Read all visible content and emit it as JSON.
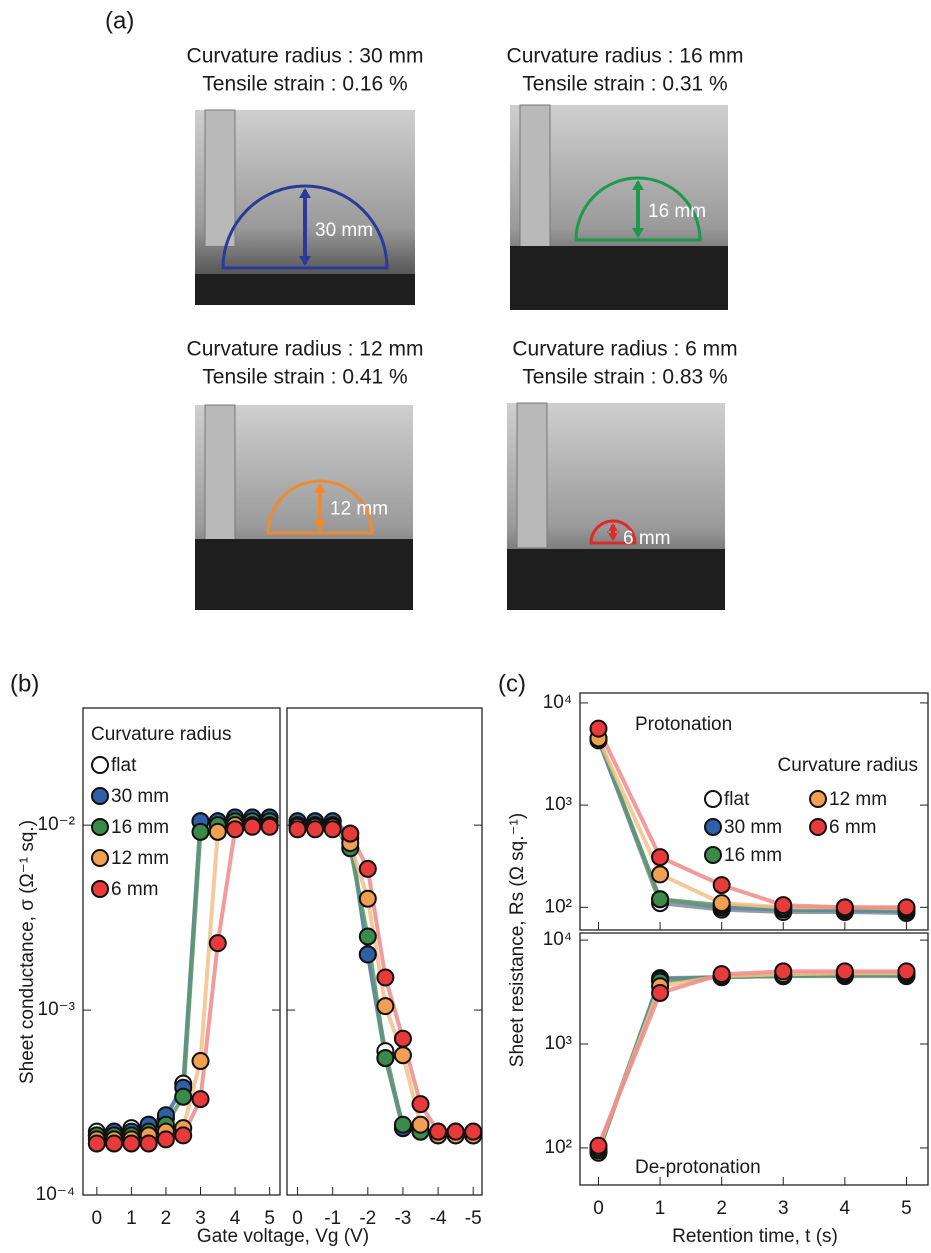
{
  "panel_a": {
    "label": "(a)",
    "photos": [
      {
        "caption1": "Curvature radius : 30 mm",
        "caption2": "Tensile strain : 0.16 %",
        "dimension": "30 mm",
        "color": "#2b3a9a"
      },
      {
        "caption1": "Curvature radius : 16 mm",
        "caption2": "Tensile strain : 0.31 %",
        "dimension": "16 mm",
        "color": "#1a9a4a"
      },
      {
        "caption1": "Curvature radius : 12 mm",
        "caption2": "Tensile strain : 0.41 %",
        "dimension": "12 mm",
        "color": "#f08a30"
      },
      {
        "caption1": "Curvature radius : 6 mm",
        "caption2": "Tensile strain : 0.83 %",
        "dimension": "6 mm",
        "color": "#e02a2a"
      }
    ]
  },
  "chart_data": [
    {
      "type": "line",
      "panel_label": "(b)",
      "ylabel": "Sheet conductance, σ (Ω⁻¹ sq.)",
      "xlabel": "Gate voltage, Vg (V)",
      "ylog": true,
      "xlim": [
        -0.4,
        5.3
      ],
      "ylim": [
        0.0001,
        0.043
      ],
      "xticks": [
        0,
        1,
        2,
        3,
        4,
        5
      ],
      "yticks": [
        {
          "value": 0.0001,
          "label": "10⁻⁴"
        },
        {
          "value": 0.001,
          "label": "10⁻³"
        },
        {
          "value": 0.01,
          "label": "10⁻²"
        }
      ],
      "show_xtick_labels": true,
      "show_ytick_labels": true,
      "legend_title": "Curvature radius",
      "legend": "upper left",
      "legend_columns": 1,
      "x": [
        0,
        0.5,
        1,
        1.5,
        2,
        2.5,
        3,
        3.5,
        4,
        4.5,
        5
      ],
      "series": [
        {
          "name": "flat",
          "color": "#ffffff",
          "line_color": "#7d8c8c",
          "values": [
            0.00022,
            0.00022,
            0.00023,
            0.00024,
            0.00026,
            0.0004,
            0.0105,
            0.0105,
            0.011,
            0.011,
            0.011
          ]
        },
        {
          "name": "30 mm",
          "color": "#2f5fa8",
          "line_color": "#5a7fb8",
          "values": [
            0.00021,
            0.00022,
            0.00022,
            0.00024,
            0.00027,
            0.00038,
            0.0105,
            0.0105,
            0.011,
            0.011,
            0.011
          ]
        },
        {
          "name": "16 mm",
          "color": "#3a8a4a",
          "line_color": "#5f9a6a",
          "values": [
            0.00021,
            0.00021,
            0.00021,
            0.00022,
            0.00024,
            0.00034,
            0.0092,
            0.01,
            0.0105,
            0.0105,
            0.0105
          ]
        },
        {
          "name": "12 mm",
          "color": "#f0a050",
          "line_color": "#f5c08a",
          "values": [
            0.0002,
            0.0002,
            0.0002,
            0.00021,
            0.00022,
            0.00023,
            0.00053,
            0.0092,
            0.01,
            0.01,
            0.01
          ]
        },
        {
          "name": "6 mm",
          "color": "#e83a3a",
          "line_color": "#f08a8a",
          "values": [
            0.00019,
            0.00019,
            0.00019,
            0.00019,
            0.0002,
            0.00021,
            0.00033,
            0.0023,
            0.0095,
            0.0098,
            0.0098
          ]
        }
      ]
    },
    {
      "type": "line",
      "ylog": true,
      "xlim": [
        0.3,
        -5.25
      ],
      "ylim": [
        0.0001,
        0.043
      ],
      "xticks": [
        0,
        -1,
        -2,
        -3,
        -4,
        -5
      ],
      "yticks": [
        0.0001,
        0.001,
        0.01
      ],
      "show_xtick_labels": true,
      "show_ytick_labels": false,
      "x": [
        0,
        -0.5,
        -1,
        -1.5,
        -2,
        -2.5,
        -3,
        -3.5,
        -4,
        -4.5,
        -5
      ],
      "series": [
        {
          "color": "#ffffff",
          "line_color": "#7d8c8c",
          "values": [
            0.0105,
            0.0105,
            0.0105,
            0.009,
            0.002,
            0.0006,
            0.00023,
            0.00022,
            0.00022,
            0.00022,
            0.00022
          ]
        },
        {
          "color": "#2f5fa8",
          "line_color": "#5a7fb8",
          "values": [
            0.0105,
            0.0105,
            0.0105,
            0.0085,
            0.002,
            0.00055,
            0.00023,
            0.00022,
            0.00022,
            0.00022,
            0.00021
          ]
        },
        {
          "color": "#3a8a4a",
          "line_color": "#5f9a6a",
          "values": [
            0.01,
            0.01,
            0.01,
            0.0075,
            0.0025,
            0.00055,
            0.00024,
            0.00022,
            0.00021,
            0.00021,
            0.00021
          ]
        },
        {
          "color": "#f0a050",
          "line_color": "#f5c08a",
          "values": [
            0.0098,
            0.0098,
            0.0098,
            0.008,
            0.004,
            0.00105,
            0.00057,
            0.00024,
            0.00021,
            0.00021,
            0.00021
          ]
        },
        {
          "color": "#e83a3a",
          "line_color": "#f08a8a",
          "values": [
            0.0095,
            0.0095,
            0.0095,
            0.009,
            0.0058,
            0.0015,
            0.0007,
            0.00031,
            0.00022,
            0.00022,
            0.00022
          ]
        }
      ]
    },
    {
      "type": "line",
      "panel_label": "(c)",
      "ylabel": "Sheet resistance, Rs (Ω sq.⁻¹)",
      "annotation": "Protonation",
      "ylog": true,
      "xlim": [
        -0.3,
        5.35
      ],
      "ylim": [
        60,
        12500
      ],
      "xticks": [
        0,
        1,
        2,
        3,
        4,
        5
      ],
      "yticks": [
        {
          "value": 100,
          "label": "10²"
        },
        {
          "value": 1000,
          "label": "10³"
        },
        {
          "value": 10000,
          "label": "10⁴"
        }
      ],
      "show_xtick_labels": false,
      "show_ytick_labels": true,
      "legend_title": "Curvature radius",
      "legend": "upper right",
      "legend_columns": 2,
      "x": [
        0,
        1,
        2,
        3,
        4,
        5
      ],
      "series": [
        {
          "name": "flat",
          "color": "#ffffff",
          "line_color": "#7d8c8c",
          "values": [
            4400,
            110,
            95,
            90,
            90,
            88
          ]
        },
        {
          "name": "30 mm",
          "color": "#2f5fa8",
          "line_color": "#5a7fb8",
          "values": [
            4300,
            120,
            100,
            95,
            93,
            92
          ]
        },
        {
          "name": "16 mm",
          "color": "#3a8a4a",
          "line_color": "#5f9a6a",
          "values": [
            4500,
            120,
            105,
            98,
            97,
            95
          ]
        },
        {
          "name": "12 mm",
          "color": "#f0a050",
          "line_color": "#f5c08a",
          "values": [
            4500,
            210,
            110,
            100,
            100,
            98
          ]
        },
        {
          "name": "6 mm",
          "color": "#e83a3a",
          "line_color": "#f08a8a",
          "values": [
            5600,
            310,
            165,
            105,
            100,
            100
          ]
        }
      ]
    },
    {
      "type": "line",
      "xlabel": "Retention time, t (s)",
      "annotation": "De-protonation",
      "ylog": true,
      "xlim": [
        -0.3,
        5.35
      ],
      "ylim": [
        44,
        11700
      ],
      "xticks": [
        0,
        1,
        2,
        3,
        4,
        5
      ],
      "yticks": [
        {
          "value": 100,
          "label": "10²"
        },
        {
          "value": 1000,
          "label": "10³"
        },
        {
          "value": 10000,
          "label": "10⁴"
        }
      ],
      "show_xtick_labels": true,
      "show_ytick_labels": true,
      "x": [
        0,
        1,
        2,
        3,
        4,
        5
      ],
      "series": [
        {
          "color": "#ffffff",
          "line_color": "#7d8c8c",
          "values": [
            90,
            4300,
            4400,
            4500,
            4500,
            4500
          ]
        },
        {
          "color": "#2f5fa8",
          "line_color": "#5a7fb8",
          "values": [
            95,
            4200,
            4400,
            4500,
            4600,
            4600
          ]
        },
        {
          "color": "#3a8a4a",
          "line_color": "#5f9a6a",
          "values": [
            95,
            4000,
            4400,
            4500,
            4600,
            4600
          ]
        },
        {
          "color": "#f0a050",
          "line_color": "#f5c08a",
          "values": [
            100,
            3600,
            4500,
            4700,
            4800,
            4800
          ]
        },
        {
          "color": "#e83a3a",
          "line_color": "#f08a8a",
          "values": [
            105,
            3100,
            4700,
            5000,
            5000,
            5000
          ]
        }
      ]
    }
  ]
}
